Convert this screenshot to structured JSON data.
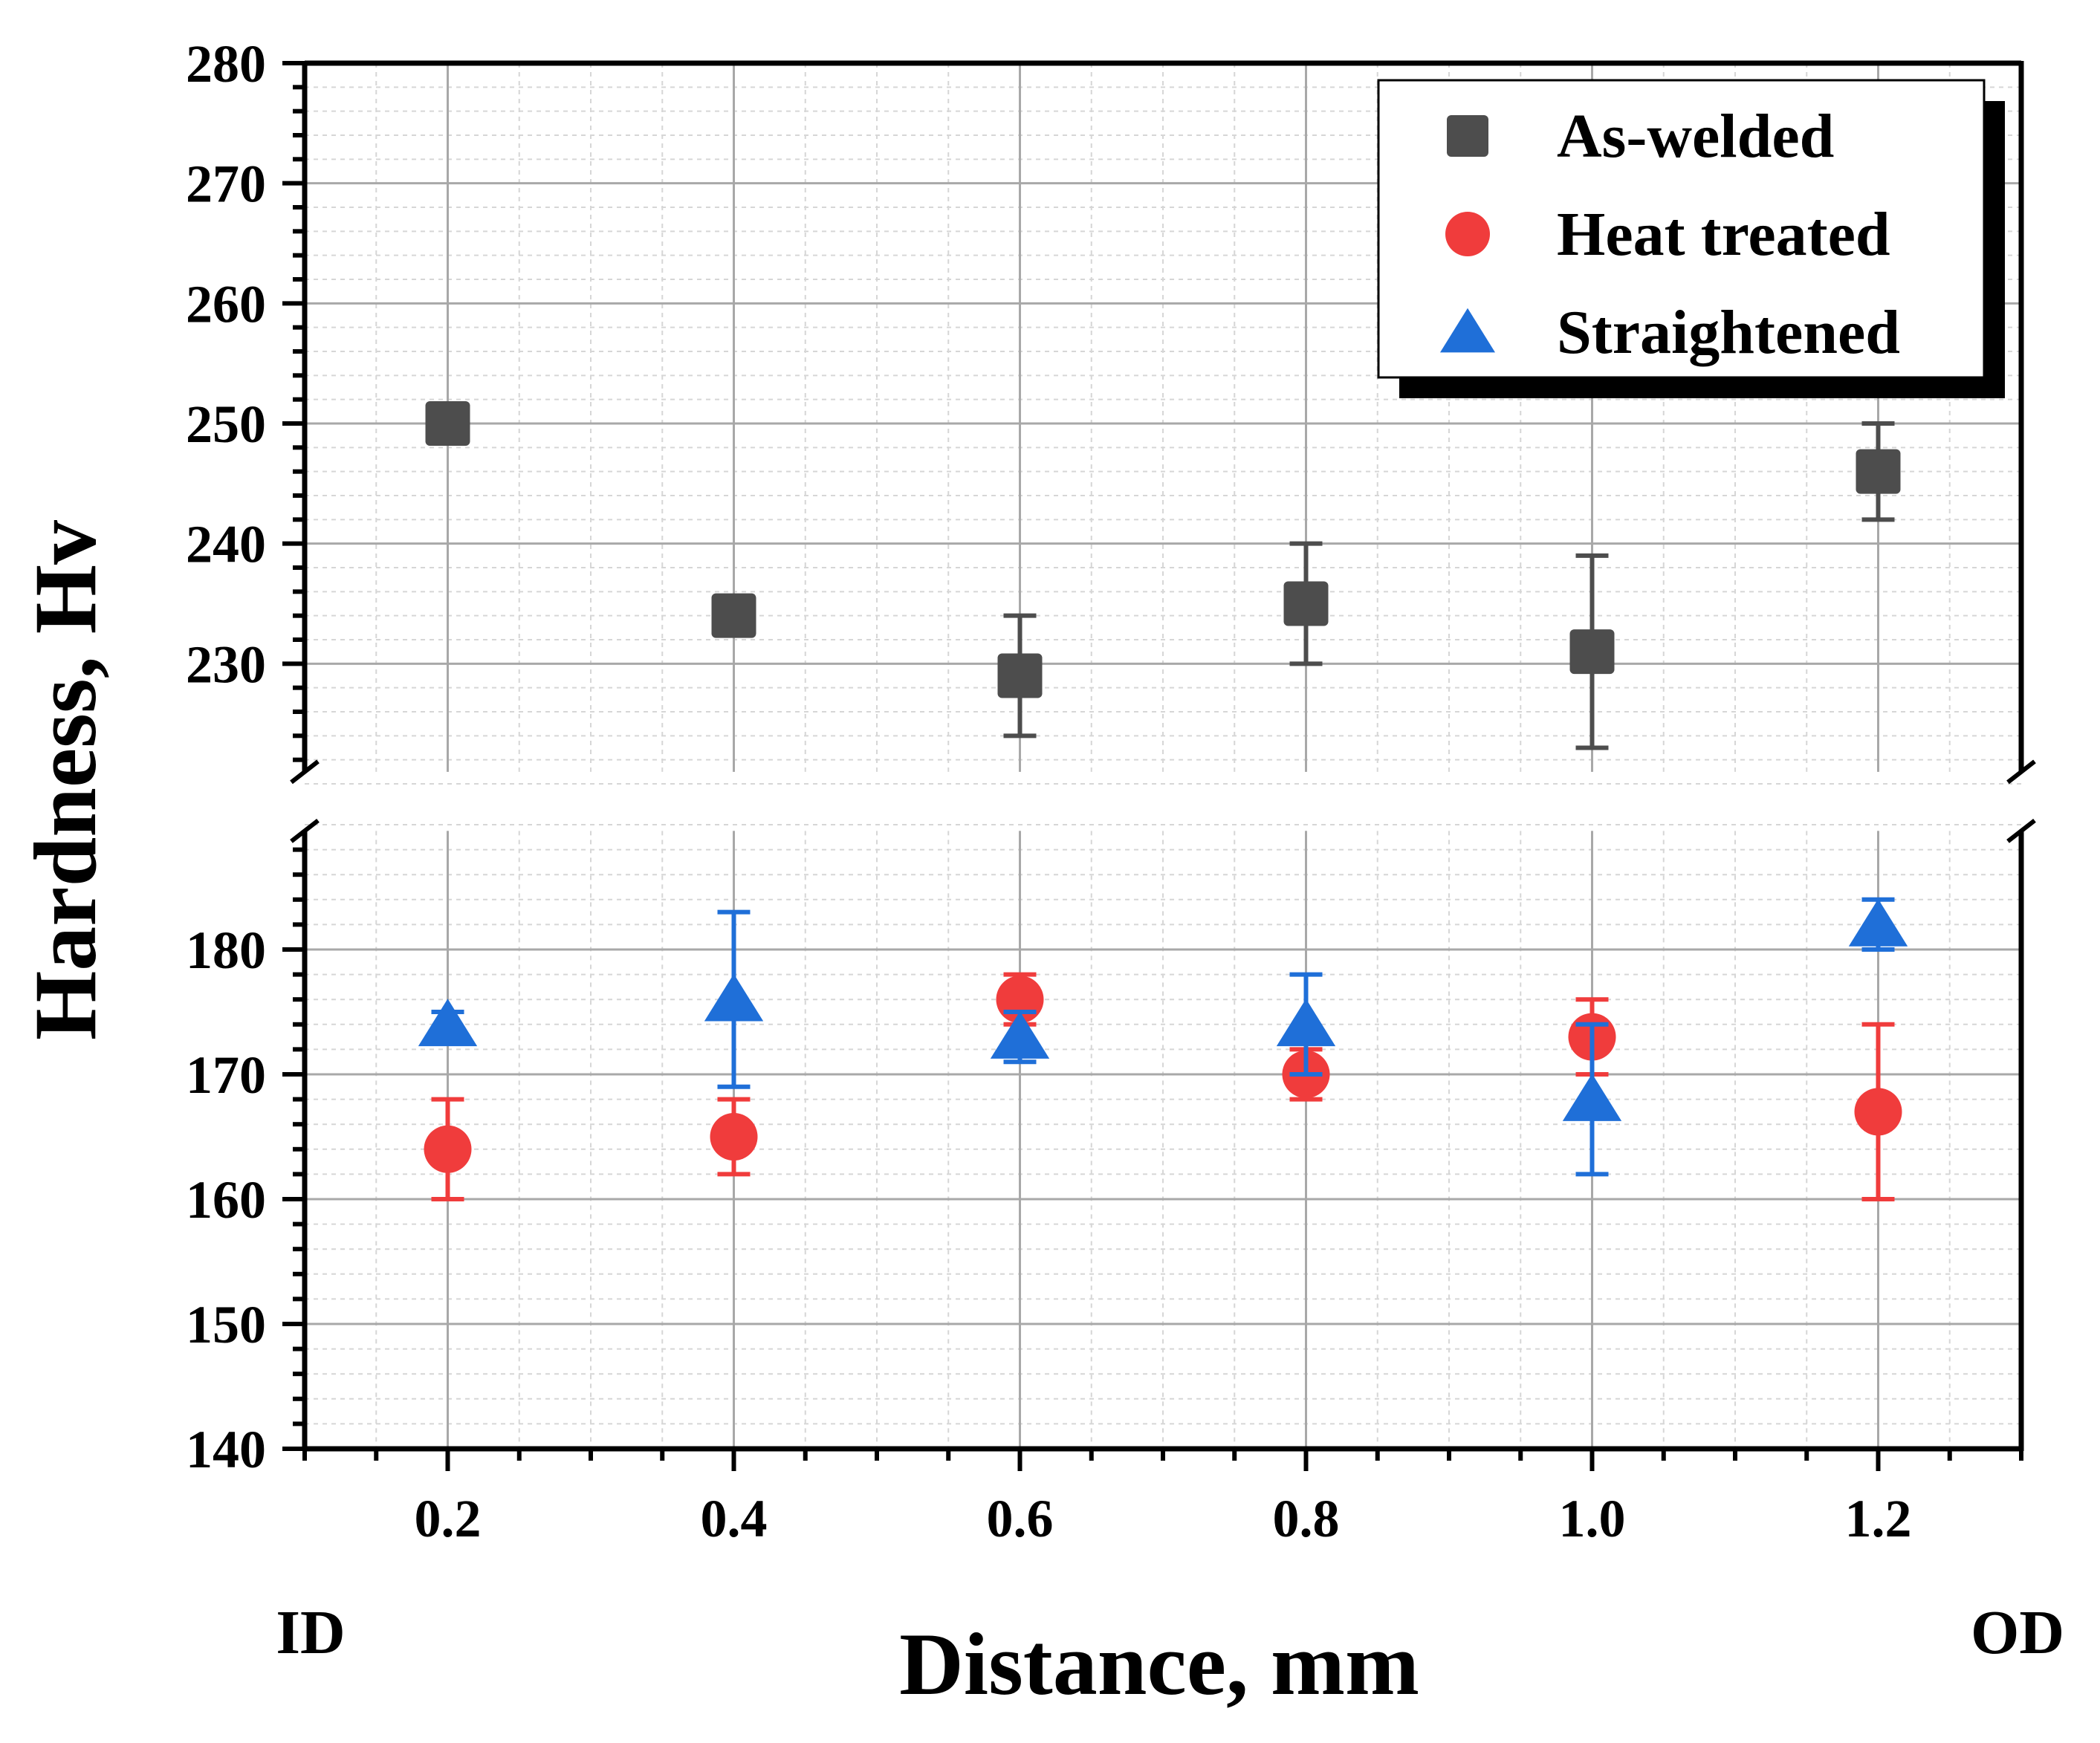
{
  "chart_data": {
    "type": "scatter",
    "title": "",
    "xlabel": "Distance, mm",
    "ylabel": "Hardness, Hv",
    "x_side_labels": {
      "left": "ID",
      "right": "OD"
    },
    "x_range": [
      0.1,
      1.3
    ],
    "x_ticks": [
      0.2,
      0.4,
      0.6,
      0.8,
      1.0,
      1.2
    ],
    "x_tick_labels": [
      "0.2",
      "0.4",
      "0.6",
      "0.8",
      "1.0",
      "1.2"
    ],
    "y_axis_break": {
      "lower_segment": [
        140,
        190
      ],
      "upper_segment": [
        220,
        280
      ]
    },
    "y_ticks": [
      140,
      150,
      160,
      170,
      180,
      230,
      240,
      250,
      260,
      270,
      280
    ],
    "y_tick_labels": [
      "140",
      "150",
      "160",
      "170",
      "180",
      "230",
      "240",
      "250",
      "260",
      "270",
      "280"
    ],
    "grid": true,
    "legend_position": "top-right",
    "series": [
      {
        "name": "As-welded",
        "marker": "square",
        "color": "#4d4d4d",
        "x": [
          0.2,
          0.4,
          0.6,
          0.8,
          1.0,
          1.2
        ],
        "y": [
          250,
          234,
          229,
          235,
          231,
          246
        ],
        "err": [
          1,
          1.5,
          5,
          5,
          8,
          4
        ]
      },
      {
        "name": "Heat treated",
        "marker": "circle",
        "color": "#f03c3c",
        "x": [
          0.2,
          0.4,
          0.6,
          0.8,
          1.0,
          1.2
        ],
        "y": [
          164,
          165,
          176,
          170,
          173,
          167
        ],
        "err": [
          4,
          3,
          2,
          2,
          3,
          7
        ]
      },
      {
        "name": "Straightened",
        "marker": "triangle",
        "color": "#1f6fd8",
        "x": [
          0.2,
          0.4,
          0.6,
          0.8,
          1.0,
          1.2
        ],
        "y": [
          174,
          176,
          173,
          174,
          168,
          182
        ],
        "err": [
          1,
          7,
          2,
          4,
          6,
          2
        ]
      }
    ]
  }
}
